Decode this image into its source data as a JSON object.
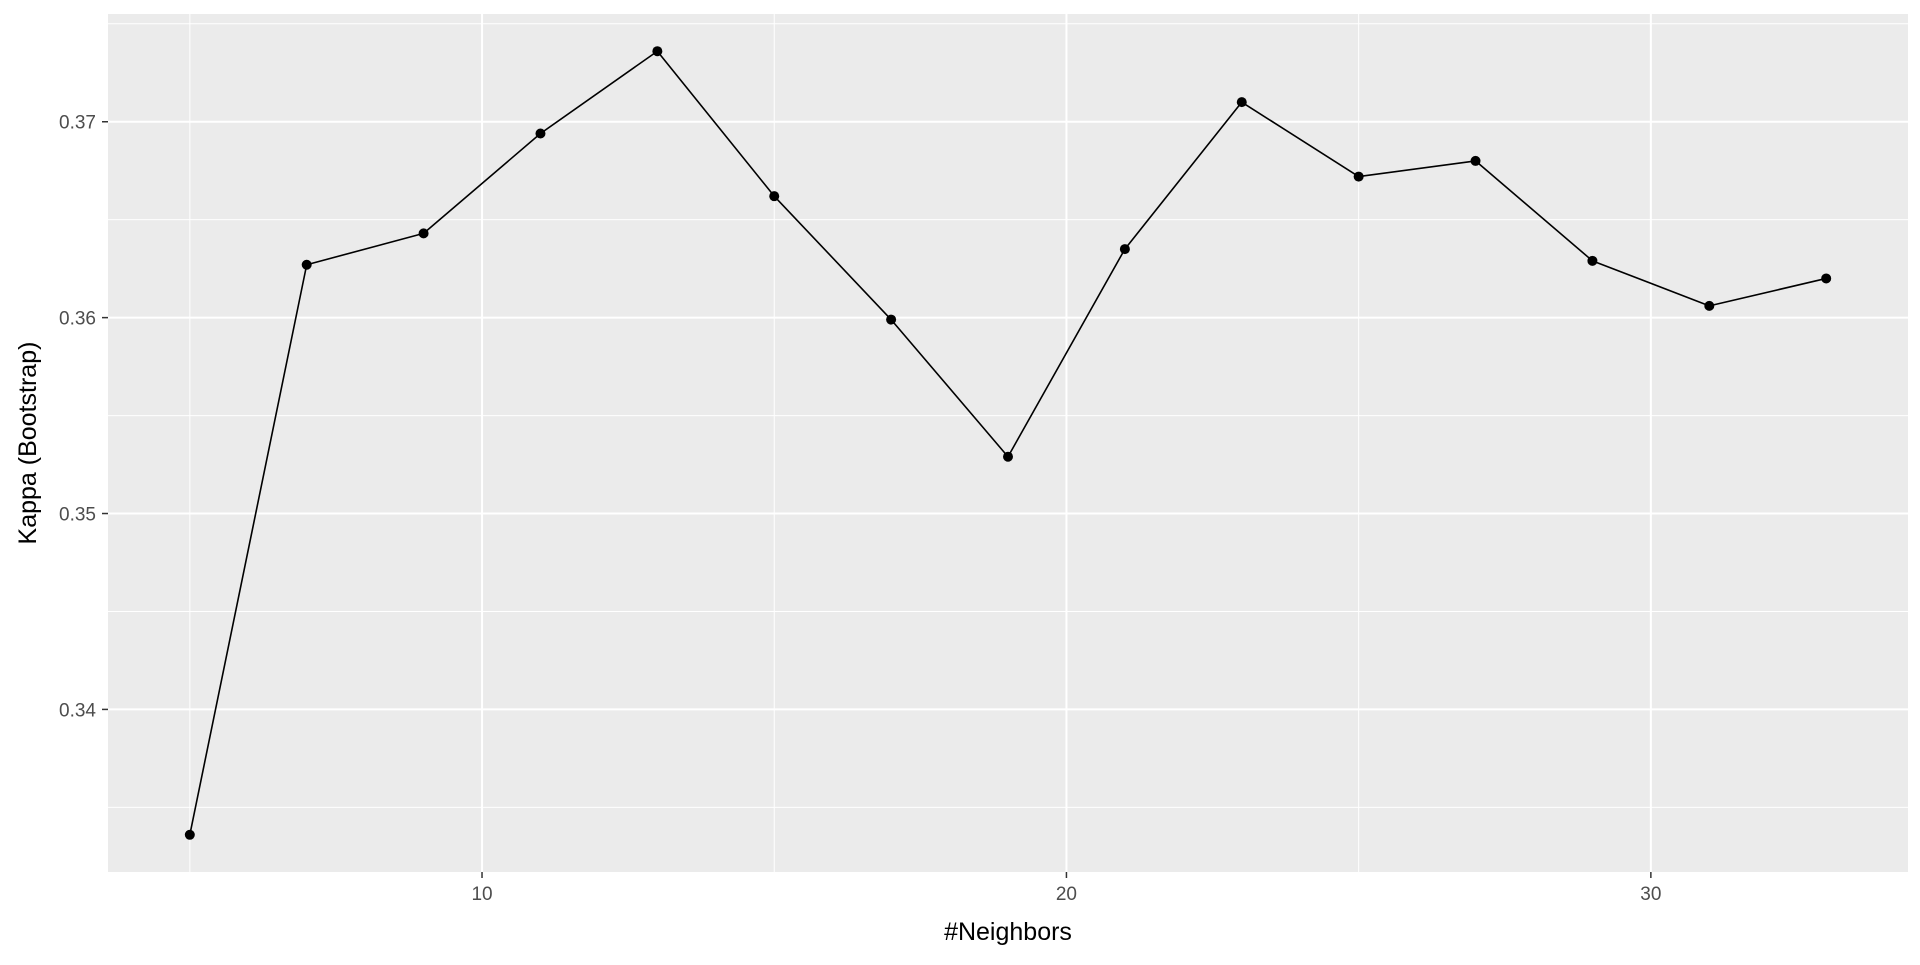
{
  "chart_data": {
    "type": "line",
    "title": "",
    "xlabel": "#Neighbors",
    "ylabel": "Kappa (Bootstrap)",
    "x": [
      5,
      7,
      9,
      11,
      13,
      15,
      17,
      19,
      21,
      23,
      25,
      27,
      29,
      31,
      33
    ],
    "y": [
      0.3336,
      0.3627,
      0.3643,
      0.3694,
      0.3736,
      0.3662,
      0.3599,
      0.3529,
      0.3635,
      0.371,
      0.3672,
      0.368,
      0.3629,
      0.3606,
      0.362
    ],
    "xlim": [
      3.6,
      34.4
    ],
    "ylim": [
      0.3317,
      0.3755
    ],
    "x_ticks": [
      10,
      20,
      30
    ],
    "x_tick_labels": [
      "10",
      "20",
      "30"
    ],
    "y_ticks": [
      0.34,
      0.35,
      0.36,
      0.37
    ],
    "y_tick_labels": [
      "0.34",
      "0.35",
      "0.36",
      "0.37"
    ],
    "grid": true,
    "legend": "none",
    "colors": {
      "panel_background": "#ebebeb",
      "grid_line": "#ffffff",
      "series_line": "#000000",
      "point": "#000000"
    }
  }
}
